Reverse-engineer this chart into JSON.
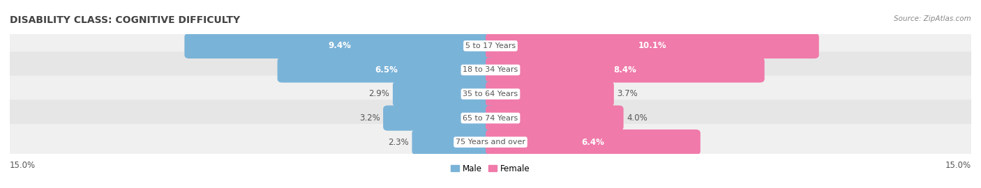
{
  "title": "DISABILITY CLASS: COGNITIVE DIFFICULTY",
  "source": "Source: ZipAtlas.com",
  "categories": [
    "5 to 17 Years",
    "18 to 34 Years",
    "35 to 64 Years",
    "65 to 74 Years",
    "75 Years and over"
  ],
  "male_values": [
    9.4,
    6.5,
    2.9,
    3.2,
    2.3
  ],
  "female_values": [
    10.1,
    8.4,
    3.7,
    4.0,
    6.4
  ],
  "max_val": 15.0,
  "male_color": "#7ab3d8",
  "female_color": "#f07aaa",
  "male_color_light": "#a8cce3",
  "female_color_light": "#f4a8c8",
  "row_bg_odd": "#f0f0f0",
  "row_bg_even": "#e6e6e6",
  "bg_color": "#ffffff",
  "title_color": "#444444",
  "source_color": "#888888",
  "dark_label_color": "#555555",
  "title_fontsize": 10,
  "bar_label_fontsize": 8.5,
  "cat_label_fontsize": 8.0,
  "axis_label_fontsize": 8.5,
  "legend_fontsize": 8.5,
  "inside_label_threshold": 5.0
}
